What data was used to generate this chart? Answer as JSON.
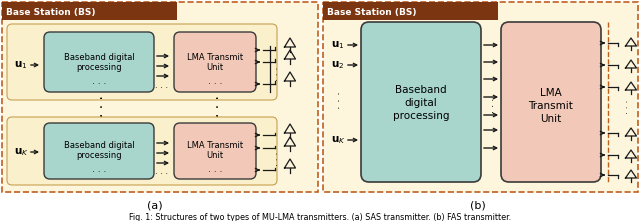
{
  "fig_width": 6.4,
  "fig_height": 2.21,
  "dpi": 100,
  "bg_outer": "#FDF5DC",
  "bg_row": "#FAF0CC",
  "header_color": "#7B3510",
  "box_teal": "#A8D5CC",
  "box_pink": "#F2C9B8",
  "box_border": "#3A3A3A",
  "arrow_color": "#1A1A1A",
  "dashed_color": "#C06020",
  "caption": "Fig. 1: Structures of two types of MU-LMA transmitters. (a) SAS transmitter. (b) FAS transmitter.",
  "subtitle_a": "(a)",
  "subtitle_b": "(b)"
}
